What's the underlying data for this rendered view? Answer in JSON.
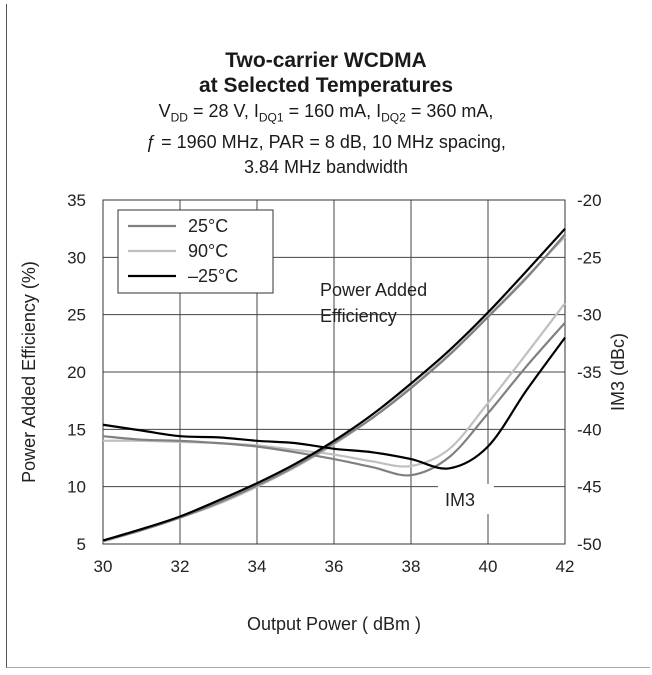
{
  "chart_data": {
    "type": "line",
    "title_line1": "Two-carrier WCDMA",
    "title_line2": "at Selected Temperatures",
    "subtitle": {
      "vdd": "V",
      "vdd_sub": "DD",
      "vdd_val": " = 28 V, I",
      "idq1_sub": "DQ1",
      "idq1_val": " = 160 mA, I",
      "idq2_sub": "DQ2",
      "idq2_val": " = 360 mA,",
      "line2": "ƒ = 1960 MHz, PAR = 8 dB, 10 MHz spacing,",
      "line3": "3.84 MHz bandwidth"
    },
    "xlabel": "Output Power ( dBm )",
    "ylabel_left": "Power Added Efficiency (%)",
    "ylabel_right": "IM3 (dBc)",
    "xlim": [
      30,
      42
    ],
    "ylim_left": [
      5,
      35
    ],
    "ylim_right": [
      -50,
      -20
    ],
    "x_ticks": [
      "30",
      "32",
      "34",
      "36",
      "38",
      "40",
      "42"
    ],
    "y_left_ticks": [
      "5",
      "10",
      "15",
      "20",
      "25",
      "30",
      "35"
    ],
    "y_right_ticks": [
      "-50",
      "-45",
      "-40",
      "-35",
      "-30",
      "-25",
      "-20"
    ],
    "grid": true,
    "legend_position": "top-left",
    "annotations": {
      "pae_line1": "Power Added",
      "pae_line2": "Efficiency",
      "im3": "IM3"
    },
    "series": [
      {
        "name": "25°C",
        "color": "#808080",
        "axis": "left",
        "group": "PAE",
        "x": [
          30,
          31,
          32,
          33,
          34,
          35,
          36,
          37,
          38,
          39,
          40,
          41,
          42
        ],
        "y": [
          5.3,
          6.2,
          7.3,
          8.6,
          10.1,
          11.8,
          13.8,
          16.0,
          18.6,
          21.5,
          24.8,
          28.2,
          32.0
        ]
      },
      {
        "name": "90°C",
        "color": "#c0c0c0",
        "axis": "left",
        "group": "PAE",
        "x": [
          30,
          31,
          32,
          33,
          34,
          35,
          36,
          37,
          38,
          39,
          40,
          41,
          42
        ],
        "y": [
          5.2,
          6.2,
          7.3,
          8.5,
          10.0,
          11.7,
          13.7,
          16.0,
          18.7,
          21.6,
          24.9,
          28.3,
          31.8
        ]
      },
      {
        "name": "–25°C",
        "color": "#000000",
        "axis": "left",
        "group": "PAE",
        "x": [
          30,
          31,
          32,
          33,
          34,
          35,
          36,
          37,
          38,
          39,
          40,
          41,
          42
        ],
        "y": [
          5.3,
          6.3,
          7.4,
          8.8,
          10.3,
          12.0,
          14.0,
          16.3,
          19.0,
          21.9,
          25.2,
          28.8,
          32.5
        ]
      },
      {
        "name": "25°C",
        "color": "#808080",
        "axis": "right",
        "group": "IM3",
        "x": [
          30,
          31,
          32,
          33,
          34,
          35,
          36,
          37,
          38,
          39,
          40,
          41,
          42
        ],
        "y": [
          -40.6,
          -40.9,
          -41.0,
          -41.2,
          -41.5,
          -42.0,
          -42.6,
          -43.3,
          -44.0,
          -42.4,
          -38.6,
          -34.5,
          -30.7
        ]
      },
      {
        "name": "90°C",
        "color": "#c0c0c0",
        "axis": "right",
        "group": "IM3",
        "x": [
          30,
          31,
          32,
          33,
          34,
          35,
          36,
          37,
          38,
          39,
          40,
          41,
          42
        ],
        "y": [
          -41.0,
          -41.0,
          -41.1,
          -41.2,
          -41.4,
          -41.8,
          -42.2,
          -42.8,
          -43.2,
          -41.7,
          -37.7,
          -33.4,
          -29.0
        ]
      },
      {
        "name": "–25°C",
        "color": "#000000",
        "axis": "right",
        "group": "IM3",
        "x": [
          30,
          31,
          32,
          33,
          34,
          35,
          36,
          37,
          38,
          39,
          40,
          41,
          42
        ],
        "y": [
          -39.6,
          -40.1,
          -40.6,
          -40.7,
          -41.0,
          -41.2,
          -41.7,
          -42.0,
          -42.6,
          -43.4,
          -41.5,
          -36.6,
          -32.0
        ]
      }
    ]
  }
}
